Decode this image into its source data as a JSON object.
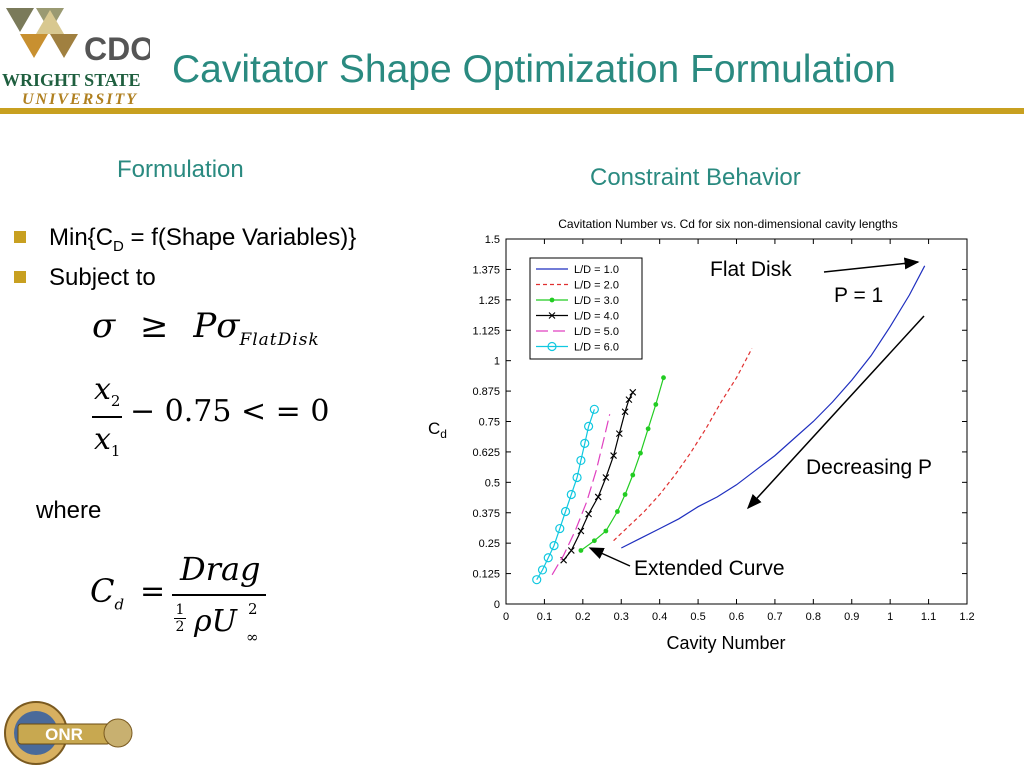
{
  "slide": {
    "title": "Cavitator Shape Optimization Formulation",
    "left_heading": "Formulation",
    "right_heading": "Constraint Behavior",
    "bullets": [
      {
        "text_main": "Min{C",
        "sub": "D",
        "text_rest": " = f(Shape Variables)}"
      },
      {
        "text_main": "Subject to",
        "sub": "",
        "text_rest": ""
      }
    ],
    "where_label": "where",
    "logo_wsu": {
      "line1": "CDOC",
      "line2": "WRIGHT STATE",
      "line3": "UNIVERSITY"
    },
    "logo_onr": {
      "text": "ONR"
    },
    "colors": {
      "title": "#2a8a80",
      "rule": "#c8a020",
      "bullet": "#c8a020"
    }
  },
  "equations": {
    "constraint1": {
      "lhs": "σ",
      "op": "≥",
      "rhs": "Pσ",
      "rhs_sub": "FlatDisk"
    },
    "constraint2": {
      "num": "x",
      "num_sub": "2",
      "den": "x",
      "den_sub": "1",
      "rest": "− 0.75 < = 0"
    },
    "drag_coeff": {
      "lhs": "C",
      "lhs_sub": "d",
      "op": "=",
      "num": "Drag",
      "half_num": "1",
      "half_den": "2",
      "den": "ρU",
      "den_sup": "2",
      "den_sub": "∞"
    }
  },
  "annotations": {
    "flat_disk": "Flat Disk",
    "p_equals": "P = 1",
    "decreasing_p": "Decreasing P",
    "extended_curve": "Extended Curve"
  },
  "chart_data": {
    "type": "line",
    "title": "Cavitation Number vs. Cd for six non-dimensional cavity lengths",
    "xlabel": "Cavity Number",
    "ylabel_main": "C",
    "ylabel_sub": "d",
    "xlim": [
      0,
      1.2
    ],
    "ylim": [
      0,
      1.5
    ],
    "xticks": [
      "0",
      "0.1",
      "0.2",
      "0.3",
      "0.4",
      "0.5",
      "0.6",
      "0.7",
      "0.8",
      "0.9",
      "1",
      "1.1",
      "1.2"
    ],
    "yticks": [
      "0",
      "0.125",
      "0.25",
      "0.375",
      "0.5",
      "0.625",
      "0.75",
      "0.875",
      "1",
      "1.125",
      "1.25",
      "1.375",
      "1.5"
    ],
    "grid": false,
    "legend_position": "top-left",
    "series": [
      {
        "name": "L/D = 1.0",
        "color": "#1f2fbf",
        "dash": "",
        "marker": "none",
        "x": [
          0.3,
          0.35,
          0.4,
          0.45,
          0.5,
          0.55,
          0.6,
          0.65,
          0.7,
          0.75,
          0.8,
          0.85,
          0.9,
          0.95,
          1.0,
          1.05,
          1.09
        ],
        "y": [
          0.23,
          0.27,
          0.31,
          0.35,
          0.4,
          0.44,
          0.49,
          0.55,
          0.61,
          0.68,
          0.75,
          0.83,
          0.92,
          1.02,
          1.14,
          1.27,
          1.39
        ]
      },
      {
        "name": "L/D = 2.0",
        "color": "#e03030",
        "dash": "4,3",
        "marker": "none",
        "x": [
          0.28,
          0.32,
          0.36,
          0.4,
          0.44,
          0.48,
          0.52,
          0.56,
          0.6,
          0.64
        ],
        "y": [
          0.26,
          0.32,
          0.38,
          0.45,
          0.53,
          0.62,
          0.72,
          0.83,
          0.93,
          1.05
        ]
      },
      {
        "name": "L/D = 3.0",
        "color": "#22cc22",
        "dash": "",
        "marker": "dot",
        "x": [
          0.195,
          0.23,
          0.26,
          0.29,
          0.31,
          0.33,
          0.35,
          0.37,
          0.39,
          0.41
        ],
        "y": [
          0.22,
          0.26,
          0.3,
          0.38,
          0.45,
          0.53,
          0.62,
          0.72,
          0.82,
          0.93
        ]
      },
      {
        "name": "L/D = 4.0",
        "color": "#000000",
        "dash": "",
        "marker": "x",
        "x": [
          0.15,
          0.17,
          0.195,
          0.215,
          0.24,
          0.26,
          0.28,
          0.295,
          0.31,
          0.32,
          0.33
        ],
        "y": [
          0.18,
          0.22,
          0.3,
          0.37,
          0.44,
          0.52,
          0.61,
          0.7,
          0.79,
          0.84,
          0.87
        ]
      },
      {
        "name": "L/D = 5.0",
        "color": "#e040c0",
        "dash": "12,5",
        "marker": "none",
        "x": [
          0.12,
          0.15,
          0.18,
          0.21,
          0.235,
          0.255,
          0.27
        ],
        "y": [
          0.12,
          0.2,
          0.3,
          0.42,
          0.55,
          0.68,
          0.78
        ]
      },
      {
        "name": "L/D = 6.0",
        "color": "#10c8e0",
        "dash": "",
        "marker": "circle",
        "x": [
          0.08,
          0.095,
          0.11,
          0.125,
          0.14,
          0.155,
          0.17,
          0.185,
          0.195,
          0.205,
          0.215,
          0.23
        ],
        "y": [
          0.1,
          0.14,
          0.19,
          0.24,
          0.31,
          0.38,
          0.45,
          0.52,
          0.59,
          0.66,
          0.73,
          0.8
        ]
      }
    ]
  }
}
